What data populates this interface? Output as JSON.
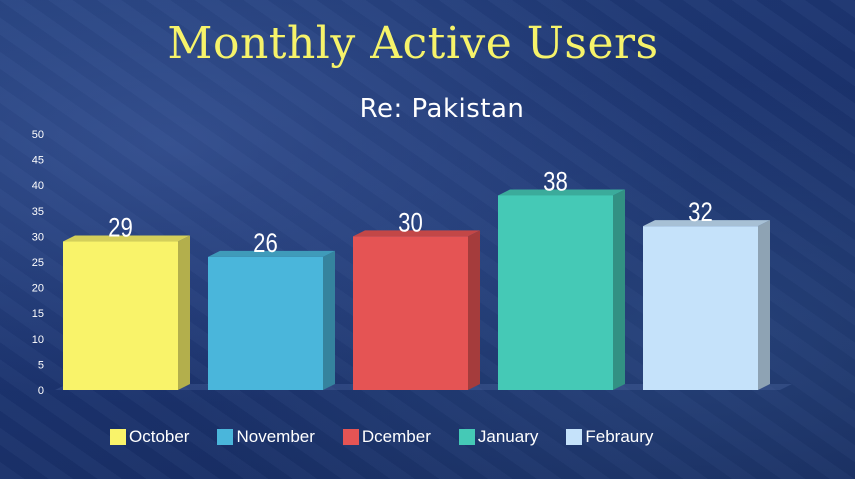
{
  "title": "Monthly Active Users",
  "subtitle": "Re: Pakistan",
  "chart_data": {
    "type": "bar",
    "categories": [
      "October",
      "November",
      "Dcember",
      "January",
      "Febraury"
    ],
    "values": [
      29,
      26,
      30,
      38,
      32
    ],
    "colors": [
      "#f9f36a",
      "#4ab6db",
      "#e55454",
      "#45c9b6",
      "#c5e2fa"
    ],
    "ylim": [
      0,
      50
    ],
    "yticks": [
      0,
      5,
      10,
      15,
      20,
      25,
      30,
      35,
      40,
      45,
      50
    ],
    "data_labels": [
      "29",
      "26",
      "30",
      "38",
      "32"
    ],
    "legend_position": "bottom",
    "grid": false,
    "style": "3d"
  }
}
